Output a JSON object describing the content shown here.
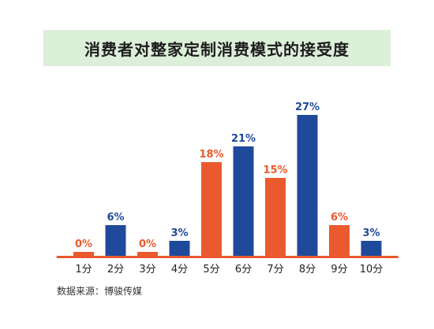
{
  "header": {
    "title": "消费者对整家定制消费模式的接受度"
  },
  "footer": {
    "source": "数据来源：博骏传媒"
  },
  "colors": {
    "orange": "#ea5a2e",
    "blue": "#1f4a9c",
    "baseline": "#ea5a2e",
    "title_band": "#dcefd9"
  },
  "chart_data": {
    "type": "bar",
    "title": "消费者对整家定制消费模式的接受度",
    "categories": [
      "1分",
      "2分",
      "3分",
      "4分",
      "5分",
      "6分",
      "7分",
      "8分",
      "9分",
      "10分"
    ],
    "values": [
      0,
      6,
      0,
      3,
      18,
      21,
      15,
      27,
      6,
      3
    ],
    "value_labels": [
      "0%",
      "6%",
      "0%",
      "3%",
      "18%",
      "21%",
      "15%",
      "27%",
      "6%",
      "3%"
    ],
    "bar_colors": [
      "orange",
      "blue",
      "orange",
      "blue",
      "orange",
      "blue",
      "orange",
      "blue",
      "orange",
      "blue"
    ],
    "ylim": [
      0,
      27
    ],
    "grid": false,
    "legend": "none"
  }
}
